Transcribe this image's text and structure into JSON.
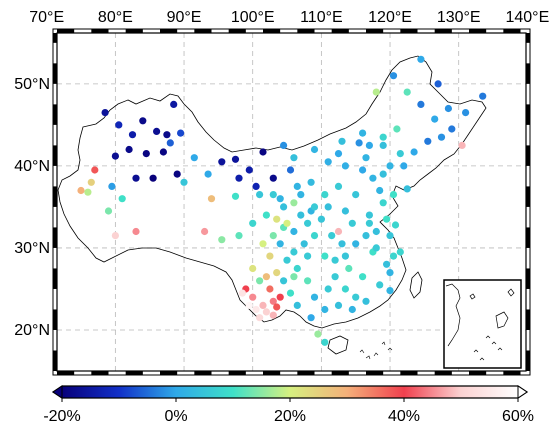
{
  "chart_data": {
    "type": "scatter",
    "title": "",
    "xlabel": "",
    "ylabel": "",
    "x_ticks": [
      "70°E",
      "80°E",
      "90°E",
      "100°E",
      "110°E",
      "120°E",
      "130°E",
      "140°E"
    ],
    "y_ticks": [
      "50°N",
      "40°N",
      "30°N",
      "20°N"
    ],
    "x_tick_values": [
      70,
      80,
      90,
      100,
      110,
      120,
      130,
      140
    ],
    "y_tick_values": [
      50,
      40,
      30,
      20
    ],
    "xlim": [
      70,
      140
    ],
    "ylim": [
      15,
      56
    ],
    "grid": true,
    "colorbar": {
      "labels": [
        "-20%",
        "0%",
        "20%",
        "40%",
        "60%"
      ],
      "range": [
        -20,
        60
      ],
      "stops": [
        "#08007a",
        "#1230c8",
        "#2fa9e8",
        "#3fe0c8",
        "#d6f080",
        "#f4b07a",
        "#f0404e",
        "#fbd2d2",
        "#ffffff"
      ]
    },
    "inset": "South China Sea islands",
    "points": [
      [
        78.5,
        46.5,
        -16
      ],
      [
        80.5,
        45.0,
        -12
      ],
      [
        82.5,
        43.8,
        -14
      ],
      [
        84.0,
        45.5,
        -18
      ],
      [
        86.0,
        44.2,
        -17
      ],
      [
        87.5,
        43.8,
        -18
      ],
      [
        88.5,
        47.5,
        -15
      ],
      [
        89.5,
        44.0,
        -8
      ],
      [
        84.5,
        41.5,
        -19
      ],
      [
        88.0,
        42.8,
        -6
      ],
      [
        80.0,
        41.2,
        -17
      ],
      [
        82.0,
        42.0,
        -18
      ],
      [
        87.0,
        41.7,
        -19
      ],
      [
        89.0,
        39.0,
        -19
      ],
      [
        85.5,
        38.5,
        -20
      ],
      [
        83.0,
        38.5,
        -17
      ],
      [
        77.0,
        39.5,
        38
      ],
      [
        76.5,
        38.0,
        25
      ],
      [
        75.0,
        37.0,
        30
      ],
      [
        76.0,
        36.8,
        18
      ],
      [
        79.5,
        37.5,
        -1
      ],
      [
        81.0,
        36.0,
        10
      ],
      [
        79.0,
        34.5,
        14
      ],
      [
        83.0,
        32.0,
        45
      ],
      [
        80.0,
        31.5,
        50
      ],
      [
        90.0,
        38.0,
        5
      ],
      [
        91.5,
        41.0,
        0
      ],
      [
        93.5,
        39.0,
        0
      ],
      [
        95.5,
        40.5,
        -16
      ],
      [
        97.5,
        40.8,
        -16
      ],
      [
        98.0,
        38.5,
        -14
      ],
      [
        99.5,
        39.5,
        -14
      ],
      [
        100.5,
        37.5,
        -13
      ],
      [
        101.5,
        41.7,
        -19
      ],
      [
        103.0,
        38.5,
        -18
      ],
      [
        104.0,
        36.0,
        2
      ],
      [
        105.5,
        39.5,
        -5
      ],
      [
        104.5,
        42.5,
        -2
      ],
      [
        101.0,
        36.5,
        5
      ],
      [
        97.5,
        36.3,
        10
      ],
      [
        94.0,
        36.0,
        28
      ],
      [
        93.0,
        32.0,
        46
      ],
      [
        95.5,
        31.0,
        15
      ],
      [
        98.0,
        31.5,
        12
      ],
      [
        100.0,
        33.0,
        8
      ],
      [
        102.0,
        34.0,
        10
      ],
      [
        103.0,
        31.5,
        14
      ],
      [
        104.5,
        32.5,
        12
      ],
      [
        101.5,
        30.5,
        20
      ],
      [
        100.0,
        27.5,
        22
      ],
      [
        99.0,
        25.0,
        40
      ],
      [
        100.0,
        24.0,
        45
      ],
      [
        101.5,
        23.0,
        48
      ],
      [
        103.0,
        23.5,
        44
      ],
      [
        102.5,
        25.0,
        36
      ],
      [
        101.0,
        21.5,
        52
      ],
      [
        100.5,
        22.5,
        55
      ],
      [
        102.0,
        26.5,
        28
      ],
      [
        103.5,
        27.0,
        24
      ],
      [
        104.5,
        26.0,
        5
      ],
      [
        105.5,
        24.5,
        10
      ],
      [
        106.5,
        27.5,
        8
      ],
      [
        106.0,
        29.5,
        6
      ],
      [
        107.5,
        30.5,
        4
      ],
      [
        108.0,
        26.0,
        12
      ],
      [
        106.0,
        32.0,
        2
      ],
      [
        107.0,
        34.0,
        4
      ],
      [
        108.5,
        34.5,
        2
      ],
      [
        110.0,
        33.5,
        5
      ],
      [
        109.0,
        31.5,
        8
      ],
      [
        106.5,
        37.5,
        2
      ],
      [
        108.5,
        38.0,
        3
      ],
      [
        110.5,
        36.5,
        8
      ],
      [
        112.5,
        37.5,
        6
      ],
      [
        111.0,
        40.5,
        1
      ],
      [
        113.5,
        40.0,
        1
      ],
      [
        116.0,
        39.5,
        0
      ],
      [
        117.5,
        38.5,
        2
      ],
      [
        115.0,
        36.5,
        5
      ],
      [
        117.0,
        34.0,
        5
      ],
      [
        119.0,
        35.5,
        8
      ],
      [
        120.5,
        36.5,
        10
      ],
      [
        122.5,
        37.2,
        4
      ],
      [
        118.0,
        32.0,
        4
      ],
      [
        120.0,
        31.5,
        5
      ],
      [
        121.5,
        29.5,
        8
      ],
      [
        119.5,
        28.0,
        4
      ],
      [
        117.5,
        29.5,
        10
      ],
      [
        115.0,
        30.5,
        2
      ],
      [
        113.0,
        30.5,
        4
      ],
      [
        112.0,
        28.5,
        6
      ],
      [
        114.0,
        27.5,
        12
      ],
      [
        116.0,
        26.5,
        10
      ],
      [
        118.5,
        25.5,
        6
      ],
      [
        120.0,
        27.0,
        2
      ],
      [
        113.5,
        25.0,
        8
      ],
      [
        111.0,
        25.0,
        6
      ],
      [
        110.5,
        22.5,
        2
      ],
      [
        112.5,
        23.0,
        4
      ],
      [
        114.5,
        22.5,
        2
      ],
      [
        116.5,
        23.5,
        4
      ],
      [
        109.5,
        19.5,
        16
      ],
      [
        110.5,
        18.5,
        8
      ],
      [
        108.5,
        21.5,
        0
      ],
      [
        103.5,
        22.8,
        38
      ],
      [
        105.0,
        28.5,
        6
      ],
      [
        104.0,
        30.5,
        2
      ],
      [
        110.5,
        29.0,
        10
      ],
      [
        112.5,
        32.0,
        48
      ],
      [
        116.5,
        41.0,
        2
      ],
      [
        119.0,
        42.5,
        4
      ],
      [
        121.5,
        41.5,
        6
      ],
      [
        123.5,
        41.7,
        0
      ],
      [
        125.5,
        43.0,
        -4
      ],
      [
        127.5,
        43.5,
        -2
      ],
      [
        126.5,
        45.7,
        0
      ],
      [
        128.5,
        47.0,
        -2
      ],
      [
        124.5,
        47.5,
        -4
      ],
      [
        122.5,
        49.0,
        12
      ],
      [
        120.5,
        51.0,
        -2
      ],
      [
        124.5,
        53.0,
        0
      ],
      [
        127.0,
        50.0,
        -6
      ],
      [
        129.0,
        44.5,
        -4
      ],
      [
        131.0,
        46.5,
        -2
      ],
      [
        130.5,
        42.5,
        48
      ],
      [
        133.5,
        48.5,
        -4
      ],
      [
        118.0,
        49.0,
        18
      ],
      [
        116.0,
        44.0,
        2
      ],
      [
        113.0,
        43.0,
        4
      ],
      [
        112.5,
        41.5,
        0
      ],
      [
        109.0,
        42.0,
        2
      ],
      [
        106.0,
        41.0,
        4
      ],
      [
        121.0,
        44.5,
        12
      ],
      [
        119.0,
        43.5,
        8
      ],
      [
        117.0,
        42.5,
        0
      ],
      [
        115.5,
        42.8,
        -2
      ],
      [
        120.0,
        40.0,
        2
      ],
      [
        119.0,
        39.0,
        4
      ],
      [
        122.0,
        40.0,
        0
      ],
      [
        118.5,
        37.0,
        2
      ],
      [
        113.5,
        34.5,
        4
      ],
      [
        111.0,
        35.0,
        4
      ],
      [
        109.0,
        35.0,
        6
      ],
      [
        107.0,
        36.5,
        2
      ],
      [
        106.0,
        35.5,
        16
      ],
      [
        105.0,
        33.0,
        20
      ],
      [
        103.5,
        33.5,
        22
      ],
      [
        102.5,
        29.0,
        24
      ],
      [
        101.0,
        26.0,
        14
      ],
      [
        103.0,
        21.8,
        48
      ],
      [
        98.5,
        24.5,
        54
      ],
      [
        99.5,
        23.0,
        58
      ],
      [
        102.0,
        22.2,
        50
      ],
      [
        104.0,
        24.0,
        40
      ],
      [
        106.5,
        23.0,
        4
      ],
      [
        109.0,
        24.0,
        2
      ],
      [
        112.0,
        26.5,
        6
      ],
      [
        113.5,
        29.0,
        5
      ],
      [
        116.5,
        31.5,
        4
      ],
      [
        118.0,
        30.0,
        6
      ],
      [
        120.5,
        29.0,
        8
      ],
      [
        120.0,
        24.8,
        2
      ],
      [
        115.0,
        24.0,
        6
      ],
      [
        117.0,
        33.0,
        6
      ],
      [
        119.5,
        33.5,
        10
      ],
      [
        120.8,
        32.8,
        8
      ],
      [
        114.5,
        33.0,
        6
      ],
      [
        111.5,
        31.5,
        6
      ],
      [
        108.0,
        29.0,
        6
      ],
      [
        106.0,
        26.5,
        14
      ],
      [
        108.0,
        33.0,
        6
      ],
      [
        104.5,
        35.0,
        4
      ],
      [
        103.0,
        36.5,
        6
      ]
    ]
  }
}
